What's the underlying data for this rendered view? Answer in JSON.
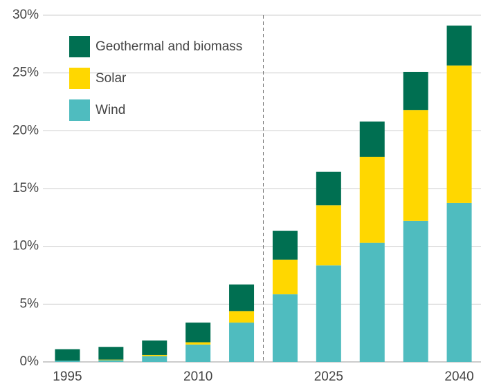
{
  "chart_data": {
    "type": "stacked_bar",
    "categories": [
      "1995",
      null,
      null,
      "2010",
      null,
      null,
      "2025",
      null,
      null,
      "2040"
    ],
    "series": [
      {
        "name": "Wind",
        "color": "#4fbcbf",
        "values": [
          0.1,
          0.15,
          0.5,
          1.5,
          3.4,
          5.85,
          8.35,
          10.3,
          12.2,
          13.75
        ]
      },
      {
        "name": "Solar",
        "color": "#ffd700",
        "values": [
          0,
          0.05,
          0.1,
          0.2,
          1.0,
          3.0,
          5.2,
          7.45,
          9.6,
          11.9
        ]
      },
      {
        "name": "Geothermal and biomass",
        "color": "#006f51",
        "values": [
          1.0,
          1.1,
          1.25,
          1.7,
          2.3,
          2.5,
          2.9,
          3.05,
          3.3,
          3.45
        ]
      }
    ],
    "ylim": [
      0,
      30
    ],
    "yticks": [
      {
        "value": 0,
        "label": "0%"
      },
      {
        "value": 5,
        "label": "5%"
      },
      {
        "value": 10,
        "label": "10%"
      },
      {
        "value": 15,
        "label": "15%"
      },
      {
        "value": 20,
        "label": "20%"
      },
      {
        "value": 25,
        "label": "25%"
      },
      {
        "value": 30,
        "label": "30%"
      }
    ],
    "grid": true,
    "legend": "top-left"
  }
}
